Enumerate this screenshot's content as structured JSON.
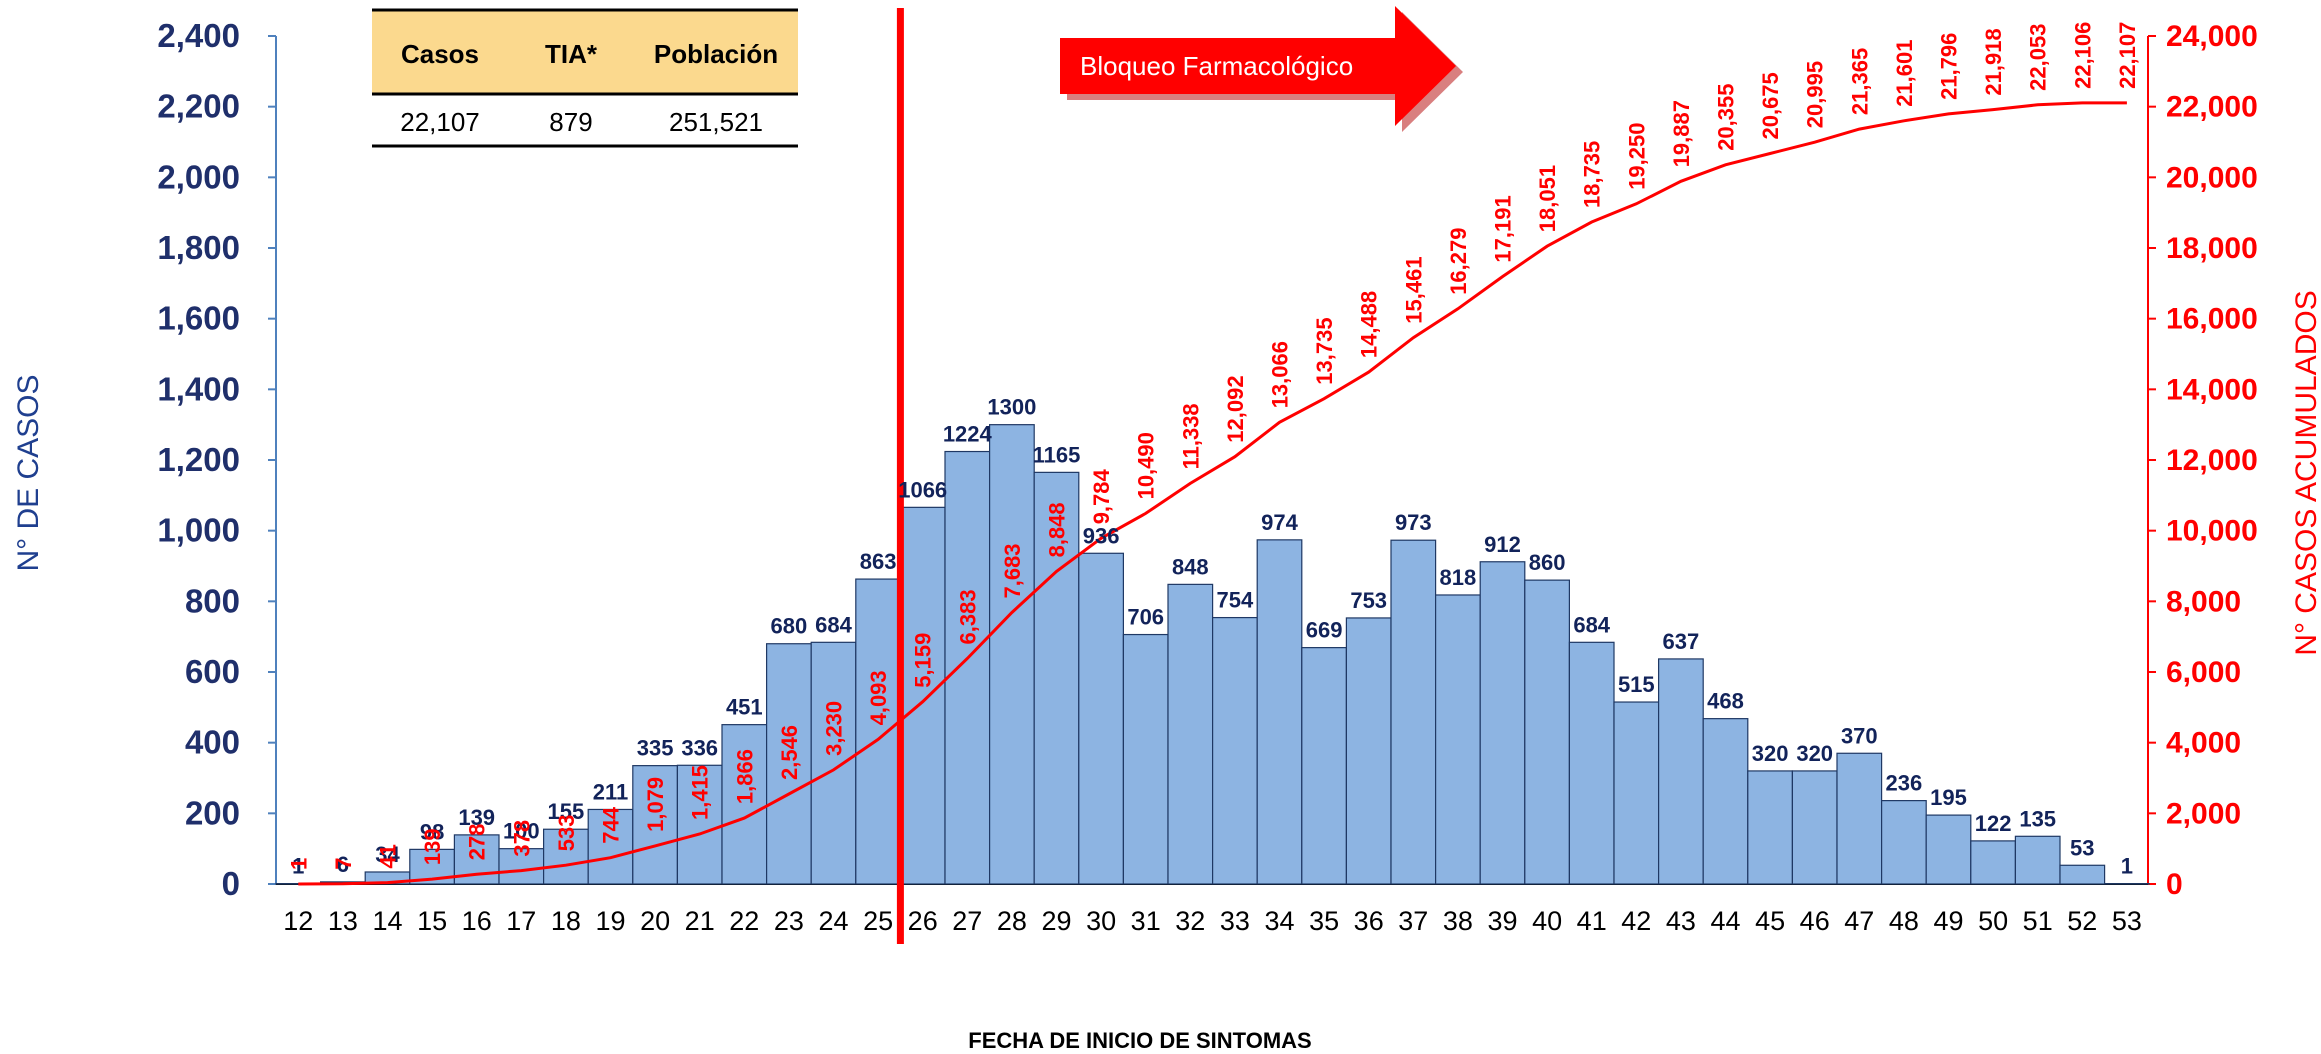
{
  "colors": {
    "bar_fill": "#8db4e2",
    "bar_stroke": "#1f3864",
    "cumulative_line": "#ff0000",
    "left_axis_text": "#1f2f6b",
    "right_axis_text": "#ff0000",
    "table_header_bg": "#fbd98e",
    "arrow_fill": "#ff0000"
  },
  "summary_table": {
    "headers": [
      "Casos",
      "TIA*",
      "Población"
    ],
    "values": [
      "22,107",
      "879",
      "251,521"
    ]
  },
  "annotation": {
    "arrow_text": "Bloqueo Farmacológico",
    "marker_week": 26
  },
  "chart_data": {
    "type": "bar",
    "title": "",
    "xlabel": "FECHA DE INICIO DE SINTOMAS",
    "ylabel": "N° DE CASOS",
    "ylabel_right": "N° CASOS ACUMULADOS",
    "ylim": [
      0,
      2400
    ],
    "ylim_right": [
      0,
      24000
    ],
    "yticks": [
      "0",
      "200",
      "400",
      "600",
      "800",
      "1,000",
      "1,200",
      "1,400",
      "1,600",
      "1,800",
      "2,000",
      "2,200",
      "2,400"
    ],
    "yticks_right": [
      "0",
      "2,000",
      "4,000",
      "6,000",
      "8,000",
      "10,000",
      "12,000",
      "14,000",
      "16,000",
      "18,000",
      "20,000",
      "22,000",
      "24,000"
    ],
    "legend": "none",
    "grid": false,
    "categories": [
      "12",
      "13",
      "14",
      "15",
      "16",
      "17",
      "18",
      "19",
      "20",
      "21",
      "22",
      "23",
      "24",
      "25",
      "26",
      "27",
      "28",
      "29",
      "30",
      "31",
      "32",
      "33",
      "34",
      "35",
      "36",
      "37",
      "38",
      "39",
      "40",
      "41",
      "42",
      "43",
      "44",
      "45",
      "46",
      "47",
      "48",
      "49",
      "50",
      "51",
      "52",
      "53"
    ],
    "series": [
      {
        "type": "bar",
        "values": [
          1,
          6,
          34,
          98,
          139,
          100,
          155,
          211,
          335,
          336,
          451,
          680,
          684,
          863,
          1066,
          1224,
          1300,
          1165,
          936,
          706,
          848,
          754,
          974,
          669,
          753,
          973,
          818,
          912,
          860,
          684,
          515,
          637,
          468,
          320,
          320,
          370,
          236,
          195,
          122,
          135,
          53,
          1
        ]
      },
      {
        "type": "line",
        "axis": "right",
        "values": [
          1,
          7,
          41,
          139,
          278,
          378,
          533,
          744,
          1079,
          1415,
          1866,
          2546,
          3230,
          4093,
          5159,
          6383,
          7683,
          8848,
          9784,
          10490,
          11338,
          12092,
          13066,
          13735,
          14488,
          15461,
          16279,
          17191,
          18051,
          18735,
          19250,
          19887,
          20355,
          20675,
          20995,
          21365,
          21601,
          21796,
          21918,
          22053,
          22106,
          22107
        ],
        "labels": [
          "1",
          "7",
          "41",
          "139",
          "278",
          "378",
          "533",
          "744",
          "1,079",
          "1,415",
          "1,866",
          "2,546",
          "3,230",
          "4,093",
          "5,159",
          "6,383",
          "7,683",
          "8,848",
          "9,784",
          "10,490",
          "11,338",
          "12,092",
          "13,066",
          "13,735",
          "14,488",
          "15,461",
          "16,279",
          "17,191",
          "18,051",
          "18,735",
          "19,250",
          "19,887",
          "20,355",
          "20,675",
          "20,995",
          "21,365",
          "21,601",
          "21,796",
          "21,918",
          "22,053",
          "22,106",
          "22,107"
        ]
      }
    ]
  }
}
